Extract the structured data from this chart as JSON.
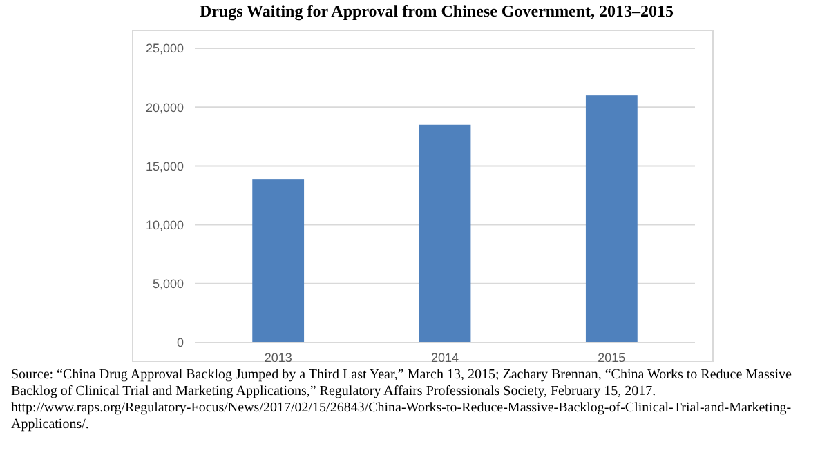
{
  "chart_data": {
    "type": "bar",
    "title": "Drugs Waiting for Approval from Chinese Government, 2013–2015",
    "categories": [
      "2013",
      "2014",
      "2015"
    ],
    "values": [
      13900,
      18500,
      21000
    ],
    "color": "#4f81bd",
    "ylim": [
      0,
      25000
    ],
    "yticks": [
      {
        "value": 0,
        "label": "0"
      },
      {
        "value": 5000,
        "label": "5,000"
      },
      {
        "value": 10000,
        "label": "10,000"
      },
      {
        "value": 15000,
        "label": "15,000"
      },
      {
        "value": 20000,
        "label": "20,000"
      },
      {
        "value": 25000,
        "label": "25,000"
      }
    ],
    "grid": "y",
    "annotations": [
      "Source: “China Drug Approval Backlog Jumped by a Third Last Year,” March 13, 2015; Zachary Brennan, “China Works to Reduce Massive Backlog of Clinical Trial and Marketing Applications,” Regulatory Affairs Professionals Society, February 15, 2017. http://www.raps.org/Regulatory-Focus/News/2017/02/15/26843/China-Works-to-Reduce-Massive-Backlog-of-Clinical-Trial-and-Marketing-Applications/."
    ]
  }
}
